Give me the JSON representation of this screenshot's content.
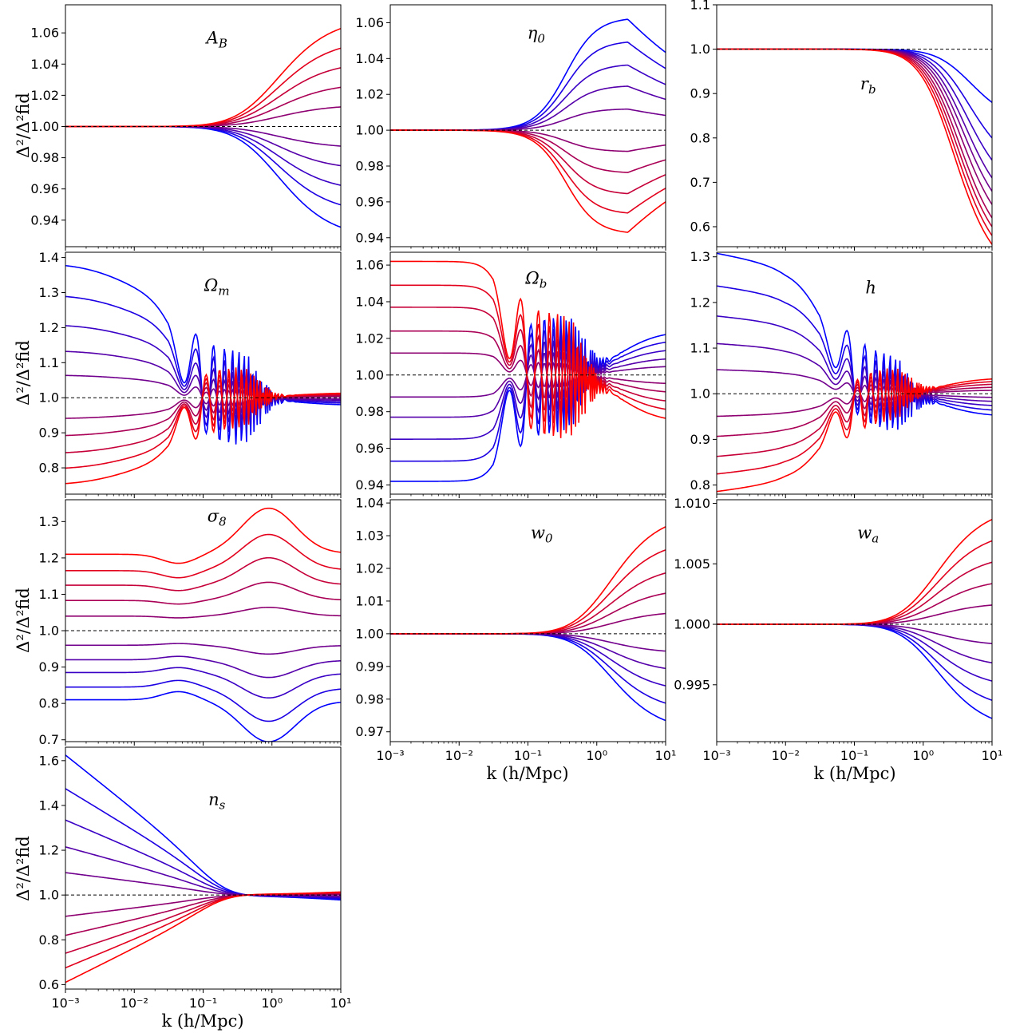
{
  "figure": {
    "ylabel": "Δ²/Δ²fid",
    "xlabel": "k (h/Mpc)",
    "xtick_labels": [
      "10⁻³",
      "10⁻²",
      "10⁻¹",
      "10⁰",
      "10¹"
    ],
    "colors": {
      "low": "#0000ff",
      "high": "#ff0000",
      "fiducial": "#000000"
    }
  },
  "chart_data": [
    {
      "id": "AB",
      "type": "line",
      "label": "A_B",
      "xscale": "log",
      "xlim": [
        0.001,
        10
      ],
      "ylim": [
        0.923,
        1.078
      ],
      "yticks": [
        0.94,
        0.96,
        0.98,
        1.0,
        1.02,
        1.04,
        1.06
      ],
      "ytick_labels": [
        "0.94",
        "0.96",
        "0.98",
        "1.00",
        "1.02",
        "1.04",
        "1.06"
      ],
      "n_curves": 10,
      "curve_max_deviation": [
        -0.072,
        -0.056,
        -0.042,
        -0.028,
        -0.014,
        0.014,
        0.028,
        0.042,
        0.056,
        0.07
      ],
      "shape": "small-scale rise"
    },
    {
      "id": "eta0",
      "type": "line",
      "label": "η_0",
      "xscale": "log",
      "xlim": [
        0.001,
        10
      ],
      "ylim": [
        0.935,
        1.07
      ],
      "yticks": [
        0.94,
        0.96,
        0.98,
        1.0,
        1.02,
        1.04,
        1.06
      ],
      "ytick_labels": [
        "0.94",
        "0.96",
        "0.98",
        "1.00",
        "1.02",
        "1.04",
        "1.06"
      ],
      "n_curves": 10,
      "curve_max_deviation": [
        0.063,
        0.05,
        0.037,
        0.025,
        0.012,
        -0.012,
        -0.024,
        -0.036,
        -0.047,
        -0.058
      ],
      "shape": "bump peaking near k=3"
    },
    {
      "id": "rb",
      "type": "line",
      "label": "r_b",
      "xscale": "log",
      "xlim": [
        0.001,
        10
      ],
      "ylim": [
        0.555,
        1.1
      ],
      "yticks": [
        0.6,
        0.7,
        0.8,
        0.9,
        1.0,
        1.1
      ],
      "ytick_labels": [
        "0.6",
        "0.7",
        "0.8",
        "0.9",
        "1.0",
        "1.1"
      ],
      "n_curves": 10,
      "curve_value_at_kmax": [
        0.88,
        0.8,
        0.75,
        0.71,
        0.68,
        0.65,
        0.62,
        0.6,
        0.58,
        0.56
      ],
      "shape": "small-scale suppression"
    },
    {
      "id": "Om",
      "type": "line",
      "label": "Ω_m",
      "xscale": "log",
      "xlim": [
        0.001,
        10
      ],
      "ylim": [
        0.725,
        1.415
      ],
      "yticks": [
        0.8,
        0.9,
        1.0,
        1.1,
        1.2,
        1.3,
        1.4
      ],
      "ytick_labels": [
        "0.8",
        "0.9",
        "1.0",
        "1.1",
        "1.2",
        "1.3",
        "1.4"
      ],
      "n_curves": 10,
      "curve_value_at_kmin": [
        1.385,
        1.295,
        1.21,
        1.135,
        1.065,
        0.94,
        0.89,
        0.84,
        0.795,
        0.75
      ],
      "shape": "large-scale plateau with BAO wiggles"
    },
    {
      "id": "Ob",
      "type": "line",
      "label": "Ω_b",
      "xscale": "log",
      "xlim": [
        0.001,
        10
      ],
      "ylim": [
        0.935,
        1.067
      ],
      "yticks": [
        0.94,
        0.96,
        0.98,
        1.0,
        1.02,
        1.04,
        1.06
      ],
      "ytick_labels": [
        "0.94",
        "0.96",
        "0.98",
        "1.00",
        "1.02",
        "1.04",
        "1.06"
      ],
      "n_curves": 10,
      "curve_value_at_kmin": [
        0.942,
        0.953,
        0.965,
        0.977,
        0.988,
        1.012,
        1.024,
        1.037,
        1.049,
        1.062
      ],
      "shape": "step with BAO wiggles"
    },
    {
      "id": "h",
      "type": "line",
      "label": "h",
      "xscale": "log",
      "xlim": [
        0.001,
        10
      ],
      "ylim": [
        0.78,
        1.31
      ],
      "yticks": [
        0.8,
        0.9,
        1.0,
        1.1,
        1.2,
        1.3
      ],
      "ytick_labels": [
        "0.8",
        "0.9",
        "1.0",
        "1.1",
        "1.2",
        "1.3"
      ],
      "n_curves": 10,
      "curve_value_at_kmin": [
        1.28,
        1.215,
        1.155,
        1.1,
        1.048,
        0.955,
        0.915,
        0.875,
        0.84,
        0.805
      ],
      "shape": "large-scale decline with BAO wiggles"
    },
    {
      "id": "s8",
      "type": "line",
      "label": "σ_8",
      "xscale": "log",
      "xlim": [
        0.001,
        10
      ],
      "ylim": [
        0.695,
        1.36
      ],
      "yticks": [
        0.7,
        0.8,
        0.9,
        1.0,
        1.1,
        1.2,
        1.3
      ],
      "ytick_labels": [
        "0.7",
        "0.8",
        "0.9",
        "1.0",
        "1.1",
        "1.2",
        "1.3"
      ],
      "n_curves": 10,
      "curve_value_at_kmin": [
        0.81,
        0.845,
        0.885,
        0.92,
        0.96,
        1.04,
        1.083,
        1.125,
        1.165,
        1.21
      ],
      "shape": "bump near k=1"
    },
    {
      "id": "w0",
      "type": "line",
      "label": "w_0",
      "xscale": "log",
      "xlim": [
        0.001,
        10
      ],
      "ylim": [
        0.967,
        1.041
      ],
      "yticks": [
        0.97,
        0.98,
        0.99,
        1.0,
        1.01,
        1.02,
        1.03,
        1.04
      ],
      "ytick_labels": [
        "0.97",
        "0.98",
        "0.99",
        "1.00",
        "1.01",
        "1.02",
        "1.03",
        "1.04"
      ],
      "n_curves": 10,
      "curve_max_deviation": [
        -0.03,
        -0.024,
        -0.018,
        -0.012,
        -0.006,
        0.007,
        0.014,
        0.021,
        0.029,
        0.037
      ],
      "shape": "small-scale rise"
    },
    {
      "id": "wa",
      "type": "line",
      "label": "w_a",
      "xscale": "log",
      "xlim": [
        0.001,
        10
      ],
      "ylim": [
        0.9903,
        1.0103
      ],
      "yticks": [
        0.995,
        1.0,
        1.005,
        1.01
      ],
      "ytick_labels": [
        "0.995",
        "1.000",
        "1.005",
        "1.010"
      ],
      "n_curves": 10,
      "curve_max_deviation": [
        -0.0088,
        -0.0071,
        -0.0053,
        -0.0036,
        -0.0018,
        0.0018,
        0.0038,
        0.0058,
        0.0078,
        0.0098
      ],
      "shape": "small-scale rise"
    },
    {
      "id": "ns",
      "type": "line",
      "label": "n_s",
      "xscale": "log",
      "xlim": [
        0.001,
        10
      ],
      "ylim": [
        0.58,
        1.66
      ],
      "yticks": [
        0.6,
        0.8,
        1.0,
        1.2,
        1.4,
        1.6
      ],
      "ytick_labels": [
        "0.6",
        "0.8",
        "1.0",
        "1.2",
        "1.4",
        "1.6"
      ],
      "n_curves": 10,
      "curve_value_at_kmin": [
        1.625,
        1.475,
        1.335,
        1.215,
        1.1,
        0.905,
        0.82,
        0.74,
        0.675,
        0.61
      ],
      "shape": "tilt pivoting near k=0.3-1"
    }
  ]
}
